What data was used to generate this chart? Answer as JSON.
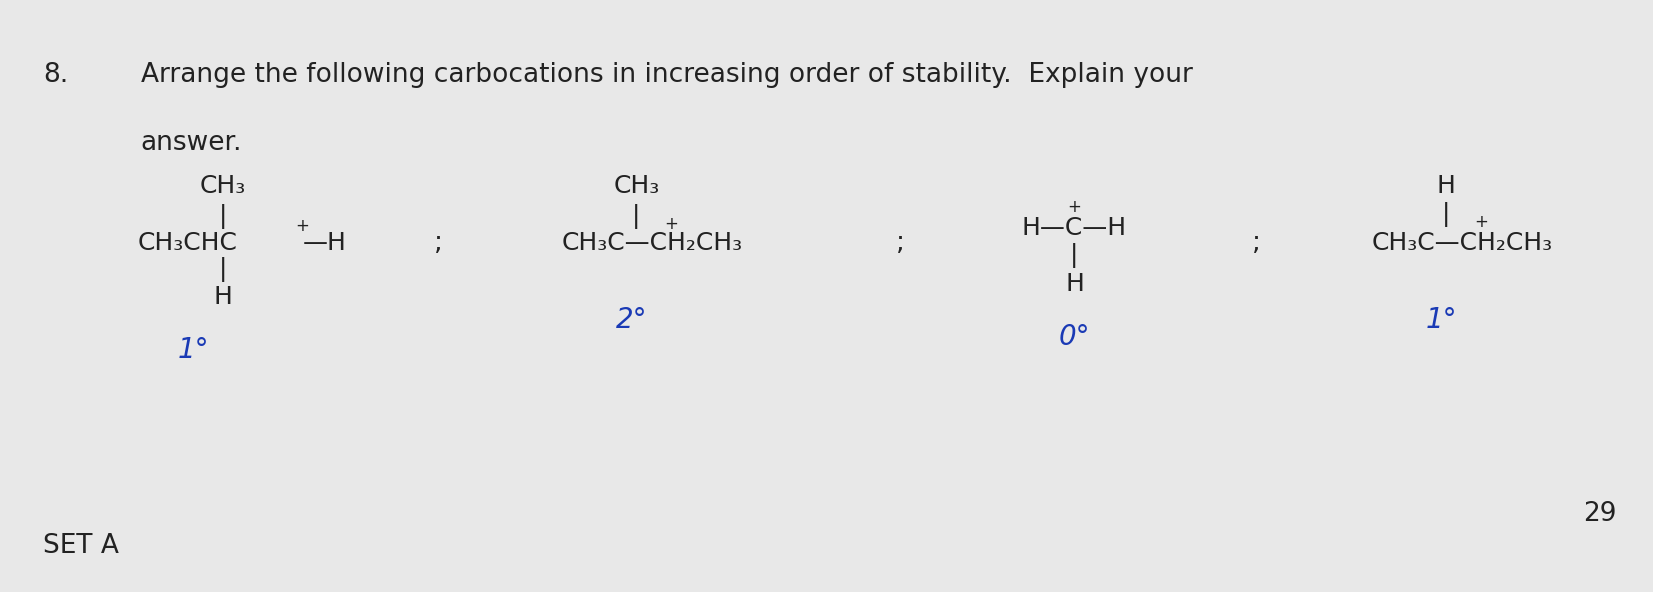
{
  "background_color": "#e8e8e8",
  "text_color": "#222222",
  "blue_color": "#1a3ab5",
  "question_number": "8.",
  "question_line1": "Arrange the following carbocations in increasing order of stability.  Explain your",
  "question_line2": "answer.",
  "set_label": "SET A",
  "page_number": "29",
  "fq": 19,
  "fs": 18,
  "fb": 20
}
